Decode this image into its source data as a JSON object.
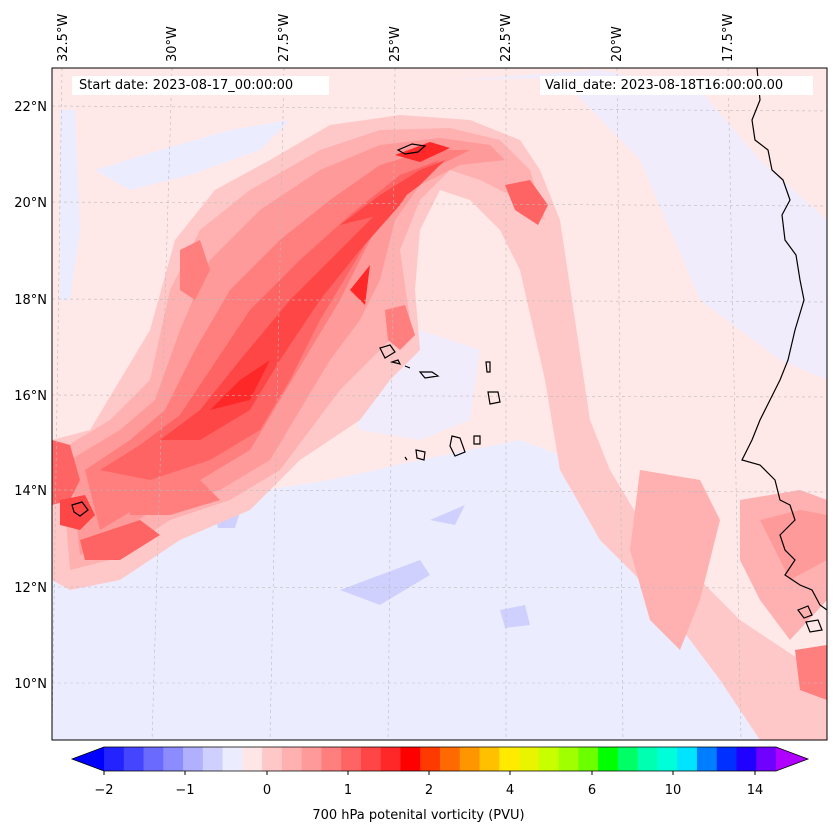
{
  "header": {
    "start_date": "Start date: 2023-08-17_00:00:00",
    "valid_date": "Valid_date: 2023-08-18T16:00:00.00"
  },
  "map": {
    "lon_labels": [
      "32.5°W",
      "30°W",
      "27.5°W",
      "25°W",
      "22.5°W",
      "20°W",
      "17.5°W"
    ],
    "lat_labels": [
      "22°N",
      "20°N",
      "18°N",
      "16°N",
      "14°N",
      "12°N",
      "10°N"
    ],
    "background_color": "#ffe8e8",
    "coastline_color": "#000000",
    "gridlines": true
  },
  "colorbar": {
    "label": "700 hPa potenital vorticity (PVU)",
    "tick_labels": [
      "−2",
      "−1",
      "0",
      "1",
      "2",
      "4",
      "6",
      "10",
      "14"
    ],
    "colors": [
      "#0000ff",
      "#2323ff",
      "#4545ff",
      "#6a6aff",
      "#8c8cff",
      "#b0b0ff",
      "#d0d0ff",
      "#ececff",
      "#ffe6e6",
      "#ffc8c8",
      "#ffb0b0",
      "#ff9a9a",
      "#ff7e7e",
      "#ff6464",
      "#ff4646",
      "#ff2828",
      "#ff0000",
      "#ff3a00",
      "#ff6a00",
      "#ff9600",
      "#ffc000",
      "#ffea00",
      "#e8f400",
      "#c8ff00",
      "#a0ff00",
      "#6cff00",
      "#00ff00",
      "#00ff66",
      "#00ffb0",
      "#00ffd8",
      "#00e4ff",
      "#007eff",
      "#0030ff",
      "#2000ff",
      "#7000ff",
      "#b000ff"
    ],
    "extend": "both"
  }
}
